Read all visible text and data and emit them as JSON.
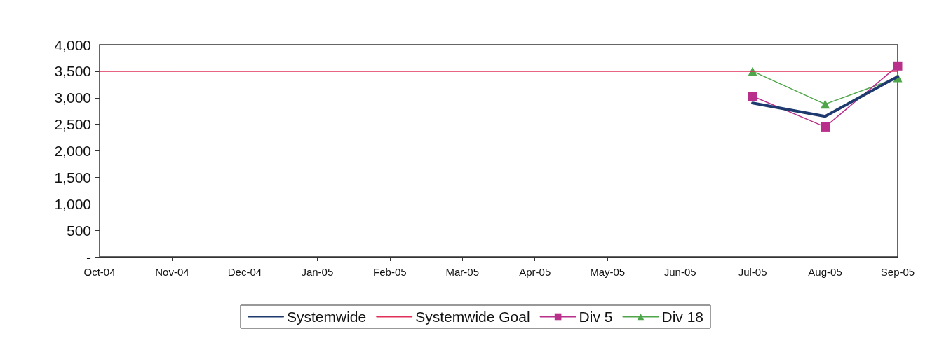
{
  "chart_data": {
    "type": "line",
    "categories": [
      "Oct-04",
      "Nov-04",
      "Dec-04",
      "Jan-05",
      "Feb-05",
      "Mar-05",
      "Apr-05",
      "May-05",
      "Jun-05",
      "Jul-05",
      "Aug-05",
      "Sep-05"
    ],
    "series": [
      {
        "name": "Systemwide",
        "color": "#1f3a6e",
        "marker": "none",
        "values": [
          null,
          null,
          null,
          null,
          null,
          null,
          null,
          null,
          null,
          2900,
          2650,
          3400
        ]
      },
      {
        "name": "Systemwide Goal",
        "color": "#e0305a",
        "marker": "none",
        "values": [
          3500,
          3500,
          3500,
          3500,
          3500,
          3500,
          3500,
          3500,
          3500,
          3500,
          3500,
          3500
        ]
      },
      {
        "name": "Div 5",
        "color": "#b8308a",
        "marker": "square",
        "values": [
          null,
          null,
          null,
          null,
          null,
          null,
          null,
          null,
          null,
          3030,
          2450,
          3600
        ]
      },
      {
        "name": "Div 18",
        "color": "#4fa64a",
        "marker": "triangle",
        "values": [
          null,
          null,
          null,
          null,
          null,
          null,
          null,
          null,
          null,
          3500,
          2880,
          3380
        ]
      }
    ],
    "ylim": [
      0,
      4000
    ],
    "yticks": [
      {
        "value": 0,
        "label": "-"
      },
      500,
      {
        "value": 1000,
        "label": "1,000"
      },
      {
        "value": 1500,
        "label": "1,500"
      },
      {
        "value": 2000,
        "label": "2,000"
      },
      {
        "value": 2500,
        "label": "2,500"
      },
      {
        "value": 3000,
        "label": "3,000"
      },
      {
        "value": 3500,
        "label": "3,500"
      },
      {
        "value": 4000,
        "label": "4,000"
      }
    ],
    "grid": false,
    "legend": "bottom"
  }
}
